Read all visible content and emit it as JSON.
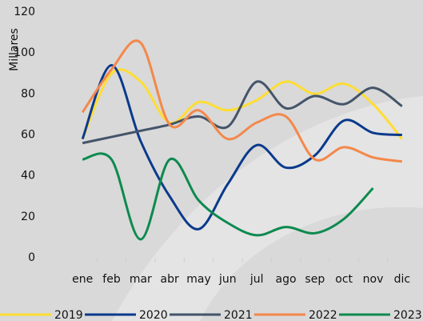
{
  "chart_data": {
    "type": "line",
    "y_label": "Millares",
    "categories": [
      "ene",
      "feb",
      "mar",
      "abr",
      "may",
      "jun",
      "jul",
      "ago",
      "sep",
      "oct",
      "nov",
      "dic"
    ],
    "ylim": [
      0,
      120
    ],
    "yticks": [
      0,
      20,
      40,
      60,
      80,
      100,
      120
    ],
    "smooth": true,
    "series": [
      {
        "name": "2019",
        "color": "#FFDD33",
        "values": [
          58,
          90,
          86,
          66,
          76,
          72,
          77,
          86,
          80,
          85,
          75,
          58
        ]
      },
      {
        "name": "2020",
        "color": "#0A3A8C",
        "values": [
          58,
          94,
          57,
          30,
          14,
          36,
          55,
          44,
          50,
          67,
          61,
          60
        ]
      },
      {
        "name": "2021",
        "color": "#44546A",
        "values": [
          56,
          59,
          62,
          65,
          69,
          64,
          86,
          73,
          79,
          75,
          83,
          74
        ]
      },
      {
        "name": "2022",
        "color": "#F4884A",
        "values": [
          71,
          92,
          105,
          65,
          72,
          58,
          66,
          69,
          48,
          54,
          49,
          47
        ]
      },
      {
        "name": "2023",
        "color": "#0E8A4F",
        "values": [
          48,
          48,
          9,
          48,
          28,
          17,
          11,
          15,
          12,
          19,
          34,
          null
        ]
      }
    ]
  }
}
